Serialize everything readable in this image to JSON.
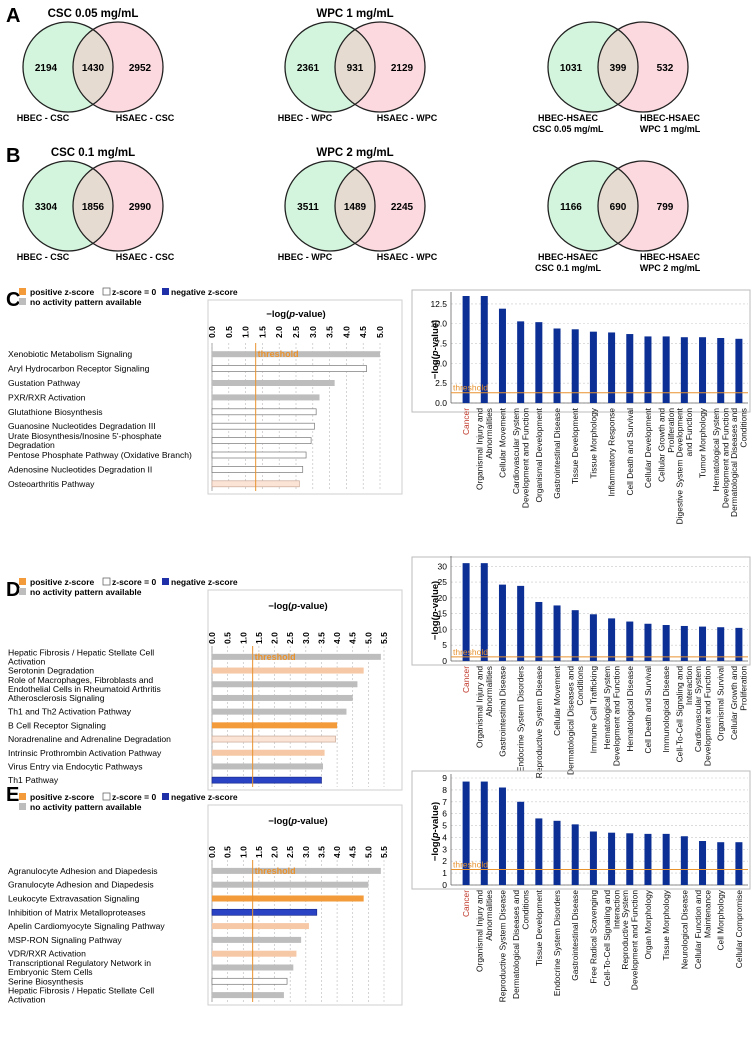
{
  "colors": {
    "green": "#d4f5dd",
    "pink": "#fbd9df",
    "overlap": "#e6dbd1",
    "orange": "#f39a3a",
    "light_orange": "#f6c8a6",
    "very_light_orange": "#fbe3d6",
    "gray": "#bdbdbd",
    "blue": "#2a43c4",
    "navy": "#0b2f94",
    "threshold": "#e8922e",
    "cancer_red": "#c0392b"
  },
  "panels": {
    "A": {
      "label": "A",
      "venns": [
        {
          "title": "CSC 0.05 mg/mL",
          "left": "2194",
          "mid": "1430",
          "right": "2952",
          "left_label": "HBEC - CSC",
          "right_label": "HSAEC - CSC"
        },
        {
          "title": "WPC 1 mg/mL",
          "left": "2361",
          "mid": "931",
          "right": "2129",
          "left_label": "HBEC - WPC",
          "right_label": "HSAEC - WPC"
        },
        {
          "title": "",
          "left": "1031",
          "mid": "399",
          "right": "532",
          "left_label": "HBEC-HSAEC",
          "left_label2": "CSC 0.05 mg/mL",
          "right_label": "HBEC-HSAEC",
          "right_label2": "WPC 1 mg/mL"
        }
      ]
    },
    "B": {
      "label": "B",
      "venns": [
        {
          "title": "CSC 0.1 mg/mL",
          "left": "3304",
          "mid": "1856",
          "right": "2990",
          "left_label": "HBEC - CSC",
          "right_label": "HSAEC - CSC"
        },
        {
          "title": "WPC 2 mg/mL",
          "left": "3511",
          "mid": "1489",
          "right": "2245",
          "left_label": "HBEC - WPC",
          "right_label": "HSAEC - WPC"
        },
        {
          "title": "",
          "left": "1166",
          "mid": "690",
          "right": "799",
          "left_label": "HBEC-HSAEC",
          "left_label2": "CSC 0.1 mg/mL",
          "right_label": "HBEC-HSAEC",
          "right_label2": "WPC 2 mg/mL"
        }
      ]
    }
  },
  "legend": {
    "positive": "positive z-score",
    "zero": "z-score = 0",
    "negative": "negative z-score",
    "none": "no activity pattern available"
  },
  "chart_data": [
    {
      "panel": "C",
      "type": "bar",
      "orientation": "horizontal",
      "xlabel_prefix": "−log(",
      "xlabel_italic": "p",
      "xlabel_suffix": "-value)",
      "xlim": [
        0,
        5.0
      ],
      "ticks": [
        "0.0",
        "0.5",
        "1.0",
        "1.5",
        "2.0",
        "2.5",
        "3.0",
        "3.5",
        "4.0",
        "4.5",
        "5.0"
      ],
      "threshold": 1.3,
      "threshold_label": "threshold",
      "categories": [
        "Xenobiotic Metabolism Signaling",
        "Aryl Hydrocarbon Receptor Signaling",
        "Gustation Pathway",
        "PXR/RXR Activation",
        "Glutathione Biosynthesis",
        "Guanosine Nucleotides Degradation III",
        "Urate Biosynthesis/Inosine 5'-phosphate Degradation",
        "Pentose Phosphate Pathway (Oxidative Branch)",
        "Adenosine Nucleotides Degradation II",
        "Osteoarthritis Pathway"
      ],
      "values": [
        5.0,
        4.6,
        3.65,
        3.2,
        3.1,
        3.05,
        2.95,
        2.8,
        2.7,
        2.6
      ],
      "zscore": [
        "none",
        "zero",
        "none",
        "none",
        "zero",
        "zero",
        "zero",
        "zero",
        "zero",
        "vlpos"
      ]
    },
    {
      "panel": "C",
      "type": "bar",
      "orientation": "vertical",
      "ylabel_prefix": "−log(",
      "ylabel_italic": "p",
      "ylabel_suffix": "-value)",
      "ylim": [
        0,
        13.5
      ],
      "ticks": [
        "0.0",
        "2.5",
        "5.0",
        "7.5",
        "10.0",
        "12.5"
      ],
      "threshold": 1.3,
      "threshold_label": "threshold",
      "categories": [
        "Cancer",
        "Organismal Injury and Abnormalities",
        "Cellular Movement",
        "Cardiovascular System Development and Function",
        "Organismal Development",
        "Gastrointestinal Disease",
        "Tissue Development",
        "Tissue Morphology",
        "Inflammatory Response",
        "Cell Death and Survival",
        "Cellular Development",
        "Cellular Growth and Proliferation",
        "Digestive System Development and Function",
        "Tumor Morphology",
        "Hematological System Development and Function",
        "Dermatological Diseases and Conditions"
      ],
      "values": [
        13.5,
        13.5,
        11.9,
        10.3,
        10.2,
        9.4,
        9.3,
        9.0,
        8.9,
        8.7,
        8.4,
        8.4,
        8.3,
        8.3,
        8.2,
        8.1
      ]
    },
    {
      "panel": "D",
      "type": "bar",
      "orientation": "horizontal",
      "xlabel_prefix": "−log(",
      "xlabel_italic": "p",
      "xlabel_suffix": "-value)",
      "xlim": [
        0,
        5.5
      ],
      "ticks": [
        "0.0",
        "0.5",
        "1.0",
        "1.5",
        "2.0",
        "2.5",
        "3.0",
        "3.5",
        "4.0",
        "4.5",
        "5.0",
        "5.5"
      ],
      "threshold": 1.3,
      "threshold_label": "threshold",
      "categories": [
        "Hepatic Fibrosis / Hepatic Stellate Cell Activation",
        "Serotonin Degradation",
        "Role of Macrophages, Fibroblasts and Endothelial Cells in Rheumatoid Arthritis",
        "Atherosclerosis Signaling",
        "Th1 and Th2 Activation Pathway",
        "B Cell Receptor Signaling",
        "Noradrenaline and Adrenaline Degradation",
        "Intrinsic Prothrombin Activation Pathway",
        "Virus Entry via Endocytic Pathways",
        "Th1 Pathway"
      ],
      "values": [
        5.4,
        4.85,
        4.65,
        4.5,
        4.3,
        4.0,
        3.95,
        3.6,
        3.55,
        3.5
      ],
      "zscore": [
        "none",
        "lpos",
        "none",
        "none",
        "none",
        "pos",
        "vlpos",
        "lpos",
        "none",
        "neg"
      ]
    },
    {
      "panel": "D",
      "type": "bar",
      "orientation": "vertical",
      "ylabel_prefix": "−log(",
      "ylabel_italic": "p",
      "ylabel_suffix": "-value)",
      "ylim": [
        0,
        32
      ],
      "ticks": [
        "0",
        "5",
        "10",
        "15",
        "20",
        "25",
        "30"
      ],
      "threshold": 1.3,
      "threshold_label": "threshold",
      "categories": [
        "Cancer",
        "Organismal Injury and Abnormalities",
        "Gastrointestinal Disease",
        "Endocrine System Disorders",
        "Reproductive System Disease",
        "Cellular Movement",
        "Dermatological Diseases and Conditions",
        "Immune Cell Trafficking",
        "Hematological System Development and Function",
        "Hematological Disease",
        "Cell Death and Survival",
        "Immunological Disease",
        "Cell-To-Cell Signaling and Interaction",
        "Cardiovascular System Development and Function",
        "Organismal Survival",
        "Cellular Growth and Proliferation"
      ],
      "values": [
        31,
        31,
        24.2,
        23.8,
        18.7,
        17.6,
        16.1,
        14.8,
        13.5,
        12.5,
        11.8,
        11.4,
        11.1,
        10.9,
        10.7,
        10.5
      ]
    },
    {
      "panel": "E",
      "type": "bar",
      "orientation": "horizontal",
      "xlabel_prefix": "−log(",
      "xlabel_italic": "p",
      "xlabel_suffix": "-value)",
      "xlim": [
        0,
        5.5
      ],
      "ticks": [
        "0.0",
        "0.5",
        "1.0",
        "1.5",
        "2.0",
        "2.5",
        "3.0",
        "3.5",
        "4.0",
        "4.5",
        "5.0",
        "5.5"
      ],
      "threshold": 1.3,
      "threshold_label": "threshold",
      "categories": [
        "Agranulocyte Adhesion and Diapedesis",
        "Granulocyte Adhesion and Diapedesis",
        "Leukocyte Extravasation Signaling",
        "Inhibition of Matrix Metalloproteases",
        "Apelin Cardiomyocyte Signaling Pathway",
        "MSP-RON Signaling Pathway",
        "VDR/RXR Activation",
        "Transcriptional Regulatory Network in Embryonic Stem Cells",
        "Serine Biosynthesis",
        "Hepatic Fibrosis / Hepatic Stellate Cell Activation"
      ],
      "values": [
        5.4,
        5.0,
        4.85,
        3.35,
        3.1,
        2.85,
        2.7,
        2.6,
        2.4,
        2.3
      ],
      "zscore": [
        "none",
        "none",
        "pos",
        "neg",
        "lpos",
        "none",
        "lpos",
        "none",
        "zero",
        "none"
      ]
    },
    {
      "panel": "E",
      "type": "bar",
      "orientation": "vertical",
      "ylabel_prefix": "−log(",
      "ylabel_italic": "p",
      "ylabel_suffix": "-value)",
      "ylim": [
        0,
        9
      ],
      "ticks": [
        "0",
        "1",
        "2",
        "3",
        "4",
        "5",
        "6",
        "7",
        "8",
        "9"
      ],
      "threshold": 1.3,
      "threshold_label": "threshold",
      "categories": [
        "Cancer",
        "Organismal Injury and Abnormalities",
        "Reproductive System Disease",
        "Dermatological Diseases and Conditions",
        "Tissue Development",
        "Endocrine System Disorders",
        "Gastrointestinal Disease",
        "Free Radical Scavenging",
        "Cell-To-Cell Signaling and Interaction",
        "Reproductive System Development and Function",
        "Organ Morphology",
        "Tissue Morphology",
        "Neurological Disease",
        "Cellular Function and Maintenance",
        "Cell Morphology",
        "Cellular Compromise"
      ],
      "values": [
        8.7,
        8.7,
        8.2,
        7.0,
        5.6,
        5.4,
        5.1,
        4.5,
        4.4,
        4.35,
        4.3,
        4.3,
        4.1,
        3.7,
        3.6,
        3.6
      ]
    }
  ]
}
